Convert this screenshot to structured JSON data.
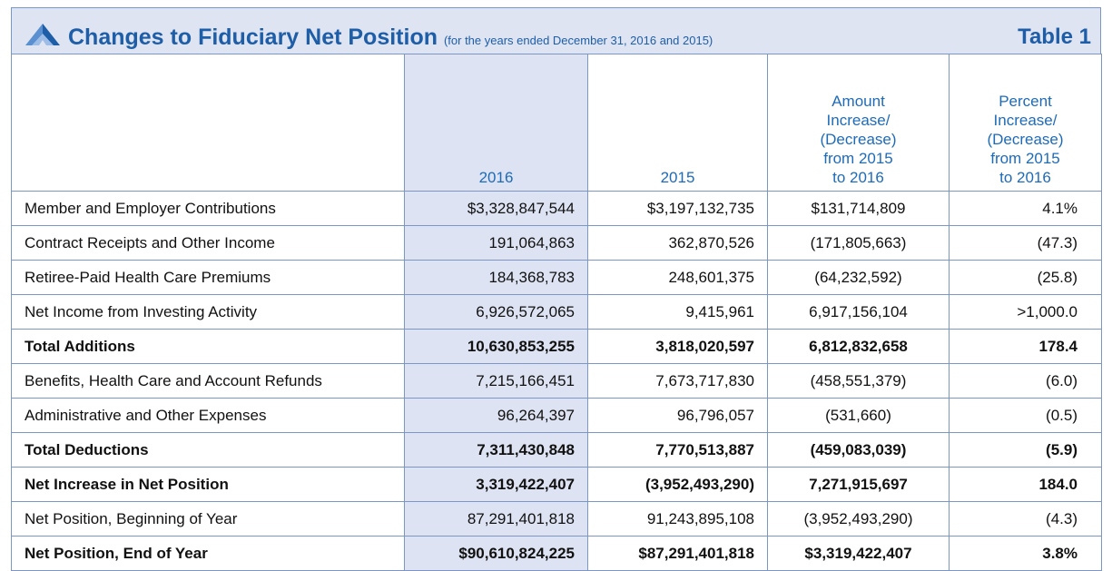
{
  "header": {
    "title": "Changes to Fiduciary Net Position",
    "subtitle": "(for the years ended December 31, 2016 and 2015)",
    "table_label": "Table 1"
  },
  "table": {
    "columns": [
      [
        ""
      ],
      [
        "2016"
      ],
      [
        "2015"
      ],
      [
        "Amount",
        "Increase/",
        "(Decrease)",
        "from 2015",
        "to 2016"
      ],
      [
        "Percent",
        "Increase/",
        "(Decrease)",
        "from 2015",
        "to 2016"
      ]
    ],
    "rows": [
      {
        "cells": [
          "Member and Employer Contributions",
          "$3,328,847,544",
          "$3,197,132,735",
          "$131,714,809",
          "4.1%"
        ]
      },
      {
        "cells": [
          "Contract Receipts and Other Income",
          "191,064,863",
          "362,870,526",
          "(171,805,663)",
          "(47.3)"
        ]
      },
      {
        "cells": [
          "Retiree-Paid Health Care Premiums",
          "184,368,783",
          "248,601,375",
          "(64,232,592)",
          "(25.8)"
        ]
      },
      {
        "cells": [
          "Net Income from Investing Activity",
          "6,926,572,065",
          "9,415,961",
          "6,917,156,104",
          ">1,000.0"
        ]
      },
      {
        "cells": [
          "Total Additions",
          "10,630,853,255",
          "3,818,020,597",
          "6,812,832,658",
          "178.4"
        ],
        "bold": true
      },
      {
        "cells": [
          "Benefits, Health Care and Account Refunds",
          "7,215,166,451",
          "7,673,717,830",
          "(458,551,379)",
          "(6.0)"
        ]
      },
      {
        "cells": [
          "Administrative and Other Expenses",
          "96,264,397",
          "96,796,057",
          "(531,660)",
          "(0.5)"
        ]
      },
      {
        "cells": [
          "Total Deductions",
          "7,311,430,848",
          "7,770,513,887",
          "(459,083,039)",
          "(5.9)"
        ],
        "bold": true
      },
      {
        "cells": [
          "Net Increase in Net Position",
          "3,319,422,407",
          "(3,952,493,290)",
          "7,271,915,697",
          "184.0"
        ],
        "bold": true
      },
      {
        "cells": [
          "Net Position, Beginning of Year",
          "87,291,401,818",
          "91,243,895,108",
          "(3,952,493,290)",
          "(4.3)"
        ]
      },
      {
        "cells": [
          "Net Position, End of Year",
          "$90,610,824,225",
          "$87,291,401,818",
          "$3,319,422,407",
          "3.8%"
        ],
        "bold": true
      }
    ]
  }
}
